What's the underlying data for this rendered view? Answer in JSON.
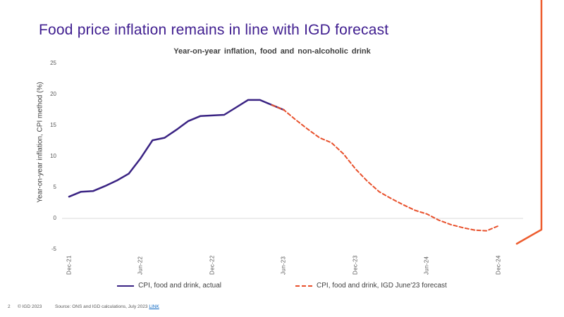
{
  "slide": {
    "title": "Food price inflation remains in line with IGD forecast",
    "page_number": "2",
    "copyright": "© IGD 2023",
    "source_text": "Source: ONS and IGD calculations, July 2023",
    "source_link_label": "LINK"
  },
  "colors": {
    "title_purple": "#3F1D8F",
    "actual_line": "#3A2383",
    "forecast_line": "#E8502B",
    "swoosh_orange": "#ED5C2E",
    "axis_text": "#595959",
    "zero_gridline": "#D9D9D9",
    "link_blue": "#0563C1"
  },
  "chart_data": {
    "type": "line",
    "title": "Year-on-year inflation, food and non-alcoholic drink",
    "xlabel": "",
    "ylabel": "Year-on-year inflation, CPI method (%)",
    "ylim": [
      -5,
      25
    ],
    "y_ticks": [
      25,
      20,
      15,
      10,
      5,
      0,
      -5
    ],
    "y_tick_labels": [
      "25",
      "20",
      "15",
      "10",
      "5",
      "0",
      "-5"
    ],
    "x_tick_labels": [
      "Dec-21",
      "Jun-22",
      "Dec-22",
      "Jun-23",
      "Dec-23",
      "Jun-24",
      "Dec-24"
    ],
    "x_tick_month_indices": [
      0,
      6,
      12,
      18,
      24,
      30,
      36
    ],
    "months_span": 37,
    "grid": "zero-line-only",
    "legend_position": "bottom",
    "series": [
      {
        "name": "CPI, food and drink, actual",
        "style": "solid",
        "color": "#3A2383",
        "start_month": "Dec-21",
        "start_index": 0,
        "values": [
          3.5,
          4.3,
          4.4,
          5.2,
          6.1,
          7.2,
          9.7,
          12.6,
          13.0,
          14.3,
          15.7,
          16.5,
          16.6,
          16.7,
          17.9,
          19.1,
          19.1,
          18.3,
          17.5
        ]
      },
      {
        "name": "CPI, food and drink, IGD June'23 forecast",
        "style": "dashed",
        "color": "#E8502B",
        "start_month": "May-23",
        "start_index": 17,
        "values": [
          18.3,
          17.5,
          15.9,
          14.4,
          13.0,
          12.2,
          10.4,
          8.0,
          6.0,
          4.3,
          3.2,
          2.2,
          1.3,
          0.7,
          -0.3,
          -1.0,
          -1.5,
          -1.9,
          -2.0,
          -1.2
        ]
      }
    ]
  }
}
